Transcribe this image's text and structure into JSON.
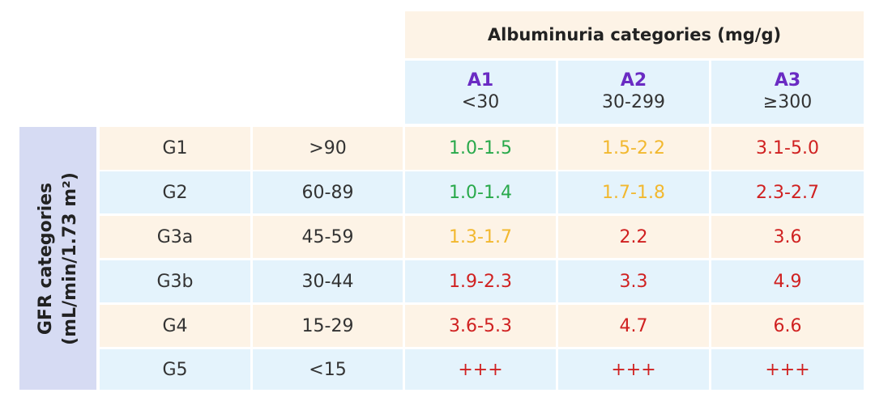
{
  "albuminuria_title": "Albuminuria categories (mg/g)",
  "gfr_title_line1": "GFR categories",
  "gfr_title_line2": "(mL/min/1.73 m²)",
  "columns": [
    {
      "code": "A1",
      "range": "<30"
    },
    {
      "code": "A2",
      "range": "30-299"
    },
    {
      "code": "A3",
      "range": "≥300"
    }
  ],
  "rows": [
    {
      "category": "G1",
      "gfr": ">90",
      "cells": [
        {
          "text": "1.0-1.5",
          "color": "green"
        },
        {
          "text": "1.5-2.2",
          "color": "yellow"
        },
        {
          "text": "3.1-5.0",
          "color": "red"
        }
      ]
    },
    {
      "category": "G2",
      "gfr": "60-89",
      "cells": [
        {
          "text": "1.0-1.4",
          "color": "green"
        },
        {
          "text": "1.7-1.8",
          "color": "yellow"
        },
        {
          "text": "2.3-2.7",
          "color": "red"
        }
      ]
    },
    {
      "category": "G3a",
      "gfr": "45-59",
      "cells": [
        {
          "text": "1.3-1.7",
          "color": "yellow"
        },
        {
          "text": "2.2",
          "color": "red"
        },
        {
          "text": "3.6",
          "color": "red"
        }
      ]
    },
    {
      "category": "G3b",
      "gfr": "30-44",
      "cells": [
        {
          "text": "1.9-2.3",
          "color": "red"
        },
        {
          "text": "3.3",
          "color": "red"
        },
        {
          "text": "4.9",
          "color": "red"
        }
      ]
    },
    {
      "category": "G4",
      "gfr": "15-29",
      "cells": [
        {
          "text": "3.6-5.3",
          "color": "red"
        },
        {
          "text": "4.7",
          "color": "red"
        },
        {
          "text": "6.6",
          "color": "red"
        }
      ]
    },
    {
      "category": "G5",
      "gfr": "<15",
      "cells": [
        {
          "text": "+++",
          "color": "red"
        },
        {
          "text": "+++",
          "color": "red"
        },
        {
          "text": "+++",
          "color": "red"
        }
      ]
    }
  ],
  "colors": {
    "green": "#29a94b",
    "yellow": "#f2b82f",
    "red": "#d02121",
    "header_code": "#6a2bc3",
    "peach_bg": "#fdf3e6",
    "blue_bg": "#e4f3fc",
    "side_bg": "#d6dbf3"
  }
}
